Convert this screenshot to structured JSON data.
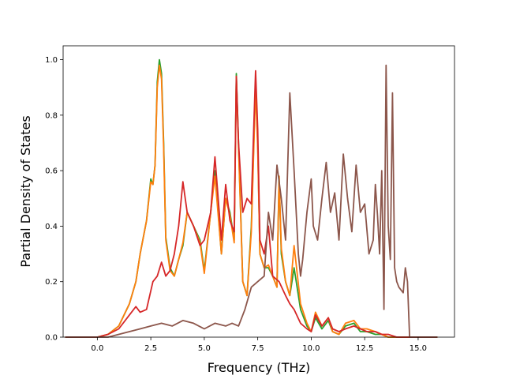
{
  "chart_data": {
    "type": "line",
    "title": "",
    "xlabel": "Frequency (THz)",
    "ylabel": "Partial Density of States",
    "xlim": [
      -1.6,
      16.7
    ],
    "ylim": [
      0.0,
      1.05
    ],
    "xticks": [
      0.0,
      2.5,
      5.0,
      7.5,
      10.0,
      12.5,
      15.0
    ],
    "xtick_labels": [
      "0.0",
      "2.5",
      "5.0",
      "7.5",
      "10.0",
      "12.5",
      "15.0"
    ],
    "yticks": [
      0.0,
      0.2,
      0.4,
      0.6,
      0.8,
      1.0
    ],
    "ytick_labels": [
      "0.0",
      "0.2",
      "0.4",
      "0.6",
      "0.8",
      "1.0"
    ],
    "grid": false,
    "legend": "none",
    "colors": [
      "#2ca02c",
      "#ff7f0e",
      "#d62728",
      "#8c564b"
    ],
    "series": [
      {
        "color": "#2ca02c",
        "x": [
          -1.5,
          0.0,
          0.5,
          1.0,
          1.5,
          1.8,
          2.0,
          2.3,
          2.5,
          2.6,
          2.7,
          2.8,
          2.9,
          3.0,
          3.1,
          3.2,
          3.4,
          3.6,
          3.8,
          4.0,
          4.2,
          4.5,
          4.8,
          5.0,
          5.3,
          5.5,
          5.8,
          6.0,
          6.2,
          6.4,
          6.5,
          6.6,
          6.8,
          7.0,
          7.2,
          7.4,
          7.5,
          7.6,
          7.8,
          8.0,
          8.2,
          8.4,
          8.5,
          8.6,
          8.8,
          9.0,
          9.2,
          9.5,
          9.8,
          10.0,
          10.2,
          10.5,
          10.8,
          11.0,
          11.3,
          11.6,
          12.0,
          12.3,
          12.6,
          13.0,
          13.3,
          13.6,
          14.0,
          14.5,
          15.0,
          15.9
        ],
        "y": [
          0.0,
          0.0,
          0.01,
          0.04,
          0.12,
          0.2,
          0.3,
          0.42,
          0.57,
          0.55,
          0.62,
          0.92,
          1.0,
          0.95,
          0.7,
          0.36,
          0.25,
          0.22,
          0.28,
          0.33,
          0.45,
          0.4,
          0.35,
          0.24,
          0.45,
          0.6,
          0.3,
          0.5,
          0.45,
          0.35,
          0.95,
          0.7,
          0.2,
          0.15,
          0.4,
          0.92,
          0.7,
          0.3,
          0.25,
          0.25,
          0.22,
          0.18,
          0.58,
          0.3,
          0.2,
          0.15,
          0.25,
          0.1,
          0.04,
          0.02,
          0.07,
          0.03,
          0.06,
          0.02,
          0.01,
          0.04,
          0.05,
          0.02,
          0.02,
          0.01,
          0.01,
          0.0,
          0.0,
          0.0,
          0.0,
          0.0
        ]
      },
      {
        "color": "#ff7f0e",
        "x": [
          -1.5,
          0.0,
          0.5,
          1.0,
          1.5,
          1.8,
          2.0,
          2.3,
          2.5,
          2.6,
          2.7,
          2.8,
          2.9,
          3.0,
          3.1,
          3.2,
          3.4,
          3.6,
          3.8,
          4.0,
          4.2,
          4.5,
          4.8,
          5.0,
          5.3,
          5.5,
          5.8,
          6.0,
          6.2,
          6.4,
          6.5,
          6.6,
          6.8,
          7.0,
          7.2,
          7.4,
          7.5,
          7.6,
          7.8,
          8.0,
          8.2,
          8.4,
          8.5,
          8.6,
          8.8,
          9.0,
          9.2,
          9.5,
          9.8,
          10.0,
          10.2,
          10.5,
          10.8,
          11.0,
          11.3,
          11.6,
          12.0,
          12.3,
          12.6,
          13.0,
          13.3,
          13.6,
          14.0,
          14.5,
          15.0,
          15.9
        ],
        "y": [
          0.0,
          0.0,
          0.01,
          0.04,
          0.12,
          0.2,
          0.3,
          0.42,
          0.56,
          0.55,
          0.62,
          0.9,
          0.98,
          0.93,
          0.68,
          0.35,
          0.24,
          0.22,
          0.28,
          0.34,
          0.45,
          0.4,
          0.34,
          0.23,
          0.45,
          0.58,
          0.3,
          0.5,
          0.44,
          0.34,
          0.94,
          0.68,
          0.2,
          0.15,
          0.38,
          0.9,
          0.68,
          0.3,
          0.25,
          0.26,
          0.22,
          0.18,
          0.58,
          0.32,
          0.2,
          0.15,
          0.33,
          0.12,
          0.05,
          0.02,
          0.09,
          0.04,
          0.07,
          0.02,
          0.01,
          0.05,
          0.06,
          0.03,
          0.03,
          0.02,
          0.01,
          0.0,
          0.0,
          0.0,
          0.0,
          0.0
        ]
      },
      {
        "color": "#d62728",
        "x": [
          -1.5,
          0.0,
          0.5,
          1.0,
          1.5,
          1.8,
          2.0,
          2.3,
          2.6,
          2.8,
          3.0,
          3.2,
          3.4,
          3.6,
          3.8,
          4.0,
          4.2,
          4.5,
          4.8,
          5.0,
          5.3,
          5.5,
          5.8,
          6.0,
          6.2,
          6.4,
          6.5,
          6.6,
          6.8,
          7.0,
          7.2,
          7.4,
          7.5,
          7.6,
          7.8,
          8.0,
          8.2,
          8.5,
          8.8,
          9.0,
          9.2,
          9.5,
          9.8,
          10.0,
          10.2,
          10.5,
          10.8,
          11.0,
          11.3,
          11.6,
          12.0,
          12.3,
          12.6,
          13.0,
          13.3,
          13.6,
          14.0,
          14.5,
          15.0,
          15.9
        ],
        "y": [
          0.0,
          0.0,
          0.01,
          0.03,
          0.08,
          0.11,
          0.09,
          0.1,
          0.2,
          0.22,
          0.27,
          0.22,
          0.24,
          0.3,
          0.4,
          0.56,
          0.45,
          0.4,
          0.33,
          0.35,
          0.45,
          0.65,
          0.35,
          0.55,
          0.42,
          0.38,
          0.94,
          0.7,
          0.45,
          0.5,
          0.48,
          0.96,
          0.75,
          0.35,
          0.3,
          0.4,
          0.22,
          0.2,
          0.15,
          0.12,
          0.1,
          0.05,
          0.03,
          0.02,
          0.08,
          0.04,
          0.07,
          0.03,
          0.02,
          0.03,
          0.04,
          0.03,
          0.02,
          0.02,
          0.01,
          0.01,
          0.0,
          0.0,
          0.0,
          0.0
        ]
      },
      {
        "color": "#8c564b",
        "x": [
          -1.5,
          0.0,
          0.5,
          1.0,
          1.5,
          2.0,
          2.5,
          3.0,
          3.5,
          4.0,
          4.5,
          5.0,
          5.5,
          6.0,
          6.3,
          6.6,
          6.9,
          7.2,
          7.5,
          7.8,
          8.0,
          8.2,
          8.4,
          8.6,
          8.8,
          9.0,
          9.2,
          9.4,
          9.5,
          9.6,
          9.8,
          10.0,
          10.1,
          10.3,
          10.5,
          10.7,
          10.9,
          11.1,
          11.3,
          11.5,
          11.7,
          11.9,
          12.1,
          12.3,
          12.5,
          12.7,
          12.9,
          13.0,
          13.1,
          13.2,
          13.3,
          13.4,
          13.5,
          13.6,
          13.7,
          13.8,
          13.9,
          14.0,
          14.1,
          14.3,
          14.4,
          14.5,
          14.6,
          15.0,
          15.9
        ],
        "y": [
          0.0,
          0.0,
          0.0,
          0.01,
          0.02,
          0.03,
          0.04,
          0.05,
          0.04,
          0.06,
          0.05,
          0.03,
          0.05,
          0.04,
          0.05,
          0.04,
          0.1,
          0.18,
          0.2,
          0.22,
          0.45,
          0.35,
          0.62,
          0.5,
          0.35,
          0.88,
          0.6,
          0.3,
          0.22,
          0.28,
          0.45,
          0.57,
          0.4,
          0.35,
          0.5,
          0.63,
          0.45,
          0.52,
          0.35,
          0.66,
          0.5,
          0.38,
          0.62,
          0.45,
          0.48,
          0.3,
          0.35,
          0.55,
          0.44,
          0.3,
          0.6,
          0.1,
          0.98,
          0.4,
          0.28,
          0.88,
          0.25,
          0.2,
          0.18,
          0.16,
          0.25,
          0.2,
          0.0,
          0.0,
          0.0
        ]
      }
    ]
  }
}
